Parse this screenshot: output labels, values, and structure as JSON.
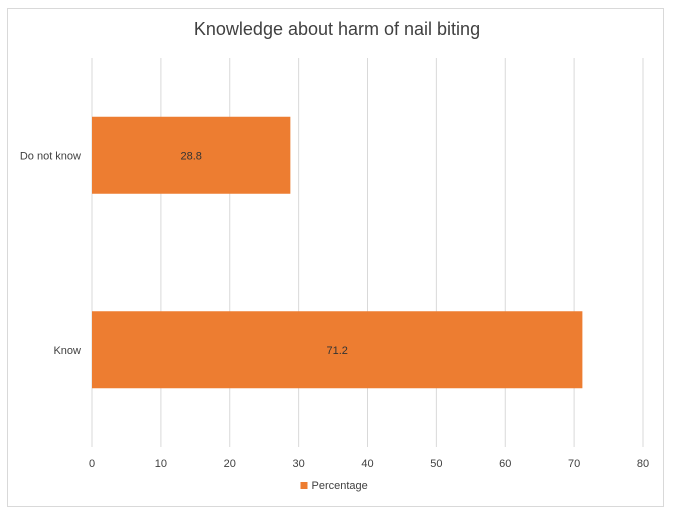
{
  "chart_data": {
    "type": "bar",
    "orientation": "horizontal",
    "title": "Knowledge about harm of nail biting",
    "categories": [
      "Do not know",
      "Know"
    ],
    "series": [
      {
        "name": "Percentage",
        "values": [
          28.8,
          71.2
        ],
        "color": "#ed7d31"
      }
    ],
    "xlim": [
      0,
      80
    ],
    "x_ticks": [
      0,
      10,
      20,
      30,
      40,
      50,
      60,
      70,
      80
    ],
    "data_labels": [
      "28.8",
      "71.2"
    ],
    "grid": "vertical",
    "gridline_color": "#d9d9d9",
    "legend_position": "bottom"
  }
}
